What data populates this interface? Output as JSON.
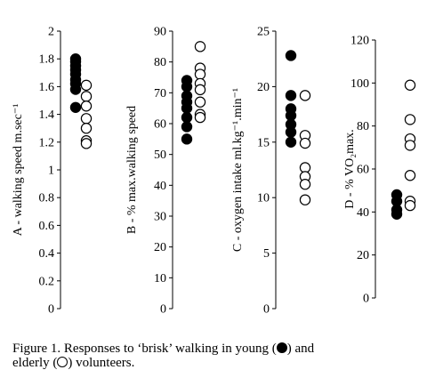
{
  "caption": {
    "line1": "Figure 1. Responses to ‘brisk’ walking in young (",
    "mid1": ") and",
    "line2_start": "elderly (",
    "line2_end": ") volunteers."
  },
  "legend": {
    "young_symbol": "filled-circle",
    "elderly_symbol": "open-circle"
  },
  "chart_data": [
    {
      "type": "scatter",
      "ylabel": "A - walking speed m.sec⁻¹",
      "ylim": [
        0,
        2
      ],
      "yticks": [
        "0",
        "0.2",
        "0.4",
        "0.6",
        "0.8",
        "1",
        "1.2",
        "1.4",
        "1.6",
        "1.8",
        "2"
      ],
      "series": [
        {
          "values": [
            1.8,
            1.78,
            1.75,
            1.72,
            1.69,
            1.65,
            1.62,
            1.58,
            1.45
          ]
        },
        {
          "values": [
            1.61,
            1.53,
            1.46,
            1.37,
            1.3,
            1.21,
            1.19
          ]
        }
      ]
    },
    {
      "type": "scatter",
      "ylabel": "B - % max.walking speed",
      "ylim": [
        0,
        90
      ],
      "yticks": [
        "0",
        "10",
        "20",
        "30",
        "40",
        "50",
        "60",
        "70",
        "80",
        "90"
      ],
      "series": [
        {
          "values": [
            74,
            72,
            69,
            67,
            65,
            62,
            59,
            55
          ]
        },
        {
          "values": [
            85,
            78,
            76,
            73,
            71,
            67,
            63,
            62
          ]
        }
      ]
    },
    {
      "type": "scatter",
      "ylabel": "C - oxygen intake ml.kg⁻¹.min⁻¹",
      "ylim": [
        0,
        25
      ],
      "yticks": [
        "0",
        "5",
        "10",
        "15",
        "20",
        "25"
      ],
      "series": [
        {
          "values": [
            22.8,
            19.2,
            18.0,
            17.4,
            16.6,
            15.9,
            15.0
          ]
        },
        {
          "values": [
            19.2,
            15.6,
            14.9,
            12.7,
            11.9,
            11.2,
            9.8
          ]
        }
      ]
    },
    {
      "type": "scatter",
      "ylabel": "D - % VO₂max.",
      "ylim": [
        0,
        120
      ],
      "yticks": [
        "0",
        "20",
        "40",
        "60",
        "80",
        "100",
        "120"
      ],
      "series": [
        {
          "values": [
            48,
            45,
            41,
            39
          ]
        },
        {
          "values": [
            99,
            83,
            74,
            71,
            57,
            45,
            43
          ]
        }
      ]
    }
  ]
}
